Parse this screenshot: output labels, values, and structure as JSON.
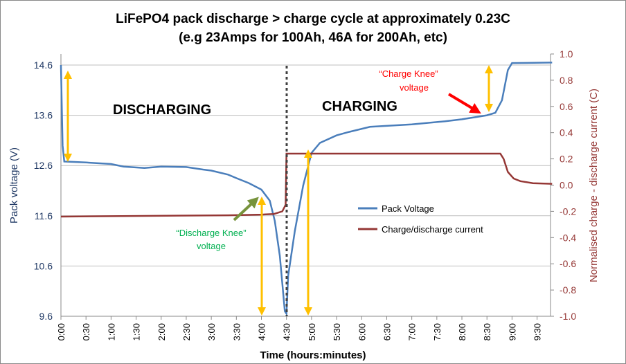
{
  "chart_data": {
    "type": "line",
    "title": "LiFePO4 pack discharge > charge cycle at approximately 0.23C",
    "subtitle": "(e.g 23Amps for 100Ah, 46A for 200Ah, etc)",
    "xlabel": "Time (hours:minutes)",
    "ylabel": "Pack voltage (V)",
    "y2label": "Normalised charge - discharge current (C)",
    "x_ticks": [
      "0:00",
      "0:30",
      "1:00",
      "1:30",
      "2:00",
      "2:30",
      "3:00",
      "3:30",
      "4:00",
      "4:30",
      "5:00",
      "5:30",
      "6:00",
      "6:30",
      "7:00",
      "7:30",
      "8:00",
      "8:30",
      "9:00",
      "9:30"
    ],
    "y_ticks": [
      "9.6",
      "10.6",
      "11.6",
      "12.6",
      "13.6",
      "14.6"
    ],
    "y2_ticks": [
      "-1.0",
      "-0.8",
      "-0.6",
      "-0.4",
      "-0.2",
      "0.0",
      "0.2",
      "0.4",
      "0.6",
      "0.8",
      "1.0"
    ],
    "ylim": [
      9.6,
      14.6
    ],
    "y2lim": [
      -1.0,
      1.0
    ],
    "xlim_minutes": [
      0,
      588
    ],
    "grid": "horizontal",
    "legend_position": "center-right",
    "series": [
      {
        "name": "Pack Voltage",
        "axis": "left",
        "color": "#4a7ebb",
        "x_minutes": [
          0,
          2,
          4,
          30,
          60,
          75,
          100,
          120,
          150,
          170,
          180,
          200,
          210,
          225,
          240,
          250,
          256,
          262,
          268,
          270,
          272,
          280,
          290,
          300,
          310,
          330,
          345,
          370,
          420,
          460,
          480,
          510,
          520,
          528,
          535,
          540,
          588
        ],
        "values": [
          14.6,
          13.0,
          12.68,
          12.66,
          12.63,
          12.58,
          12.55,
          12.58,
          12.57,
          12.52,
          12.5,
          12.42,
          12.35,
          12.25,
          12.12,
          11.9,
          11.5,
          10.8,
          9.7,
          9.65,
          10.4,
          11.3,
          12.2,
          12.85,
          13.05,
          13.2,
          13.27,
          13.37,
          13.42,
          13.48,
          13.52,
          13.6,
          13.65,
          13.9,
          14.5,
          14.64,
          14.65
        ]
      },
      {
        "name": "Charge/discharge current",
        "axis": "right",
        "color": "#953735",
        "x_minutes": [
          0,
          100,
          200,
          240,
          255,
          265,
          269,
          270,
          271,
          300,
          400,
          500,
          526,
          530,
          535,
          542,
          550,
          565,
          588
        ],
        "values": [
          -0.24,
          -0.235,
          -0.23,
          -0.225,
          -0.22,
          -0.2,
          -0.15,
          0.24,
          0.24,
          0.24,
          0.24,
          0.24,
          0.24,
          0.2,
          0.1,
          0.05,
          0.03,
          0.015,
          0.01
        ]
      }
    ],
    "annotations": {
      "discharging": "DISCHARGING",
      "charging": "CHARGING",
      "charge_knee_1": "“Charge Knee”",
      "charge_knee_2": "voltage",
      "discharge_knee_1": "“Discharge Knee”",
      "discharge_knee_2": "voltage"
    },
    "colors": {
      "left_axis": "#1f3864",
      "right_axis": "#953735",
      "arrows": "#ffc000",
      "charge_knee": "#ff0000",
      "discharge_knee": "#00b050",
      "discharge_arrow": "#77933c"
    }
  }
}
